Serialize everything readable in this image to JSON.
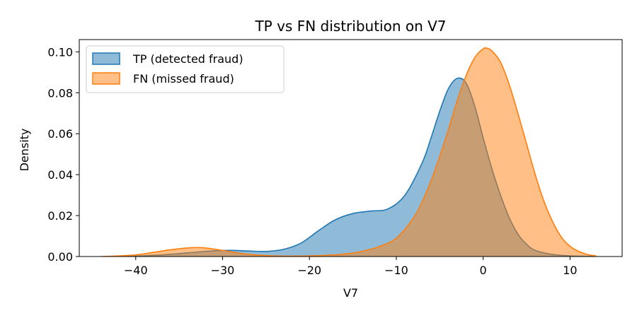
{
  "chart_data": {
    "type": "area",
    "title": "TP vs FN distribution on V7",
    "xlabel": "V7",
    "ylabel": "Density",
    "xlim": [
      -46.5,
      16
    ],
    "ylim": [
      0,
      0.106
    ],
    "xticks": [
      -40,
      -30,
      -20,
      -10,
      0,
      10
    ],
    "xtick_labels": [
      "−40",
      "−30",
      "−20",
      "−10",
      "0",
      "10"
    ],
    "yticks": [
      0.0,
      0.02,
      0.04,
      0.06,
      0.08,
      0.1
    ],
    "ytick_labels": [
      "0.00",
      "0.02",
      "0.04",
      "0.06",
      "0.08",
      "0.10"
    ],
    "grid": false,
    "legend_position": "top-left",
    "series": [
      {
        "name": "TP (detected fraud)",
        "color": "#1f77b4",
        "fill_color": "#1f77b4",
        "fill_opacity": 0.5,
        "x": [
          -43,
          -40,
          -37,
          -34,
          -31,
          -29,
          -27,
          -25,
          -23,
          -21,
          -19,
          -17,
          -15,
          -13,
          -11,
          -9,
          -7,
          -6,
          -5,
          -4,
          -3,
          -2,
          -1,
          0,
          1,
          2,
          3,
          4,
          5,
          6,
          8,
          10,
          12,
          13
        ],
        "y": [
          0.0,
          0.0002,
          0.0008,
          0.0018,
          0.0028,
          0.003,
          0.0027,
          0.0025,
          0.0035,
          0.0065,
          0.0125,
          0.018,
          0.021,
          0.0222,
          0.0232,
          0.03,
          0.046,
          0.058,
          0.071,
          0.082,
          0.087,
          0.085,
          0.074,
          0.058,
          0.043,
          0.03,
          0.019,
          0.011,
          0.006,
          0.003,
          0.001,
          0.0003,
          0.0001,
          0.0
        ]
      },
      {
        "name": "FN (missed fraud)",
        "color": "#ff7f0e",
        "fill_color": "#ff7f0e",
        "fill_opacity": 0.5,
        "x": [
          -44,
          -42,
          -40,
          -38,
          -36,
          -34,
          -33,
          -32,
          -30,
          -28,
          -26,
          -24,
          -22,
          -20,
          -18,
          -16,
          -14,
          -12,
          -10,
          -8,
          -7,
          -6,
          -5,
          -4,
          -3,
          -2,
          -1,
          0,
          0.5,
          1,
          2,
          3,
          4,
          5,
          6,
          7,
          8,
          9,
          10,
          11,
          12,
          13
        ],
        "y": [
          0.0,
          0.0003,
          0.0008,
          0.002,
          0.0033,
          0.0042,
          0.0044,
          0.0042,
          0.003,
          0.0016,
          0.0007,
          0.0003,
          0.0002,
          0.0003,
          0.0006,
          0.0012,
          0.0025,
          0.0048,
          0.009,
          0.019,
          0.027,
          0.037,
          0.049,
          0.062,
          0.076,
          0.088,
          0.097,
          0.1015,
          0.1017,
          0.1005,
          0.095,
          0.084,
          0.07,
          0.055,
          0.04,
          0.027,
          0.017,
          0.0095,
          0.005,
          0.0025,
          0.001,
          0.0003
        ]
      }
    ]
  }
}
